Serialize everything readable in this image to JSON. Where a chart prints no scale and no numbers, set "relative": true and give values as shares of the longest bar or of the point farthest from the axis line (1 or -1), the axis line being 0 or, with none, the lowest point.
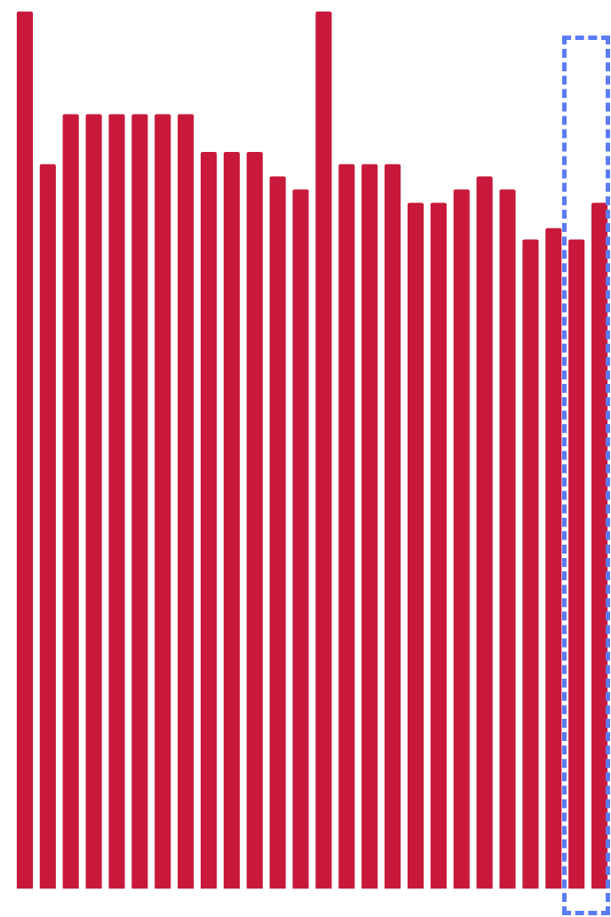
{
  "chart_data": {
    "type": "bar",
    "relative": true,
    "categories": [
      null,
      null,
      null,
      null,
      null,
      null,
      null,
      null,
      null,
      null,
      null,
      null,
      null,
      null,
      null,
      null,
      null,
      null,
      null,
      null,
      null,
      null,
      null,
      null,
      null,
      null
    ],
    "values": [
      1,
      0.826,
      0.883,
      0.883,
      0.883,
      0.883,
      0.883,
      0.883,
      0.84,
      0.84,
      0.84,
      0.812,
      0.797,
      1,
      0.826,
      0.826,
      0.826,
      0.782,
      0.782,
      0.797,
      0.812,
      0.797,
      0.74,
      0.753,
      0.74,
      0.782
    ],
    "color": "#c8193a"
  }
}
